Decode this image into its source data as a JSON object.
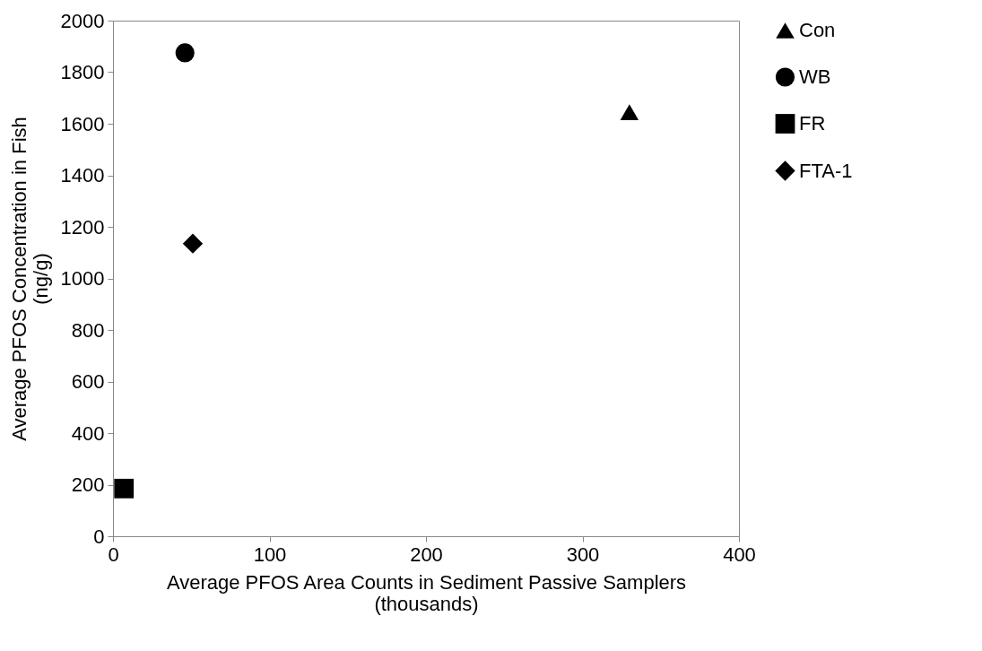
{
  "chart_data": {
    "type": "scatter",
    "xlabel": "Average PFOS Area Counts in Sediment Passive Samplers\n(thousands)",
    "ylabel": "Average PFOS Concentration in Fish\n(ng/g)",
    "series": [
      {
        "name": "Con",
        "color": "#000000",
        "marker": "triangle",
        "x": [
          330
        ],
        "values": [
          1645
        ]
      },
      {
        "name": "WB",
        "color": "#000000",
        "marker": "circle",
        "x": [
          46
        ],
        "values": [
          1875
        ]
      },
      {
        "name": "FR",
        "color": "#000000",
        "marker": "square",
        "x": [
          7
        ],
        "values": [
          185
        ]
      },
      {
        "name": "FTA-1",
        "color": "#000000",
        "marker": "diamond",
        "x": [
          51
        ],
        "values": [
          1135
        ]
      }
    ],
    "xlim": [
      0,
      400
    ],
    "xticks": [
      0,
      100,
      200,
      300,
      400
    ],
    "ylim": [
      0,
      2000
    ],
    "yticks": [
      0,
      200,
      400,
      600,
      800,
      1000,
      1200,
      1400,
      1600,
      1800,
      2000
    ],
    "legend": "right"
  }
}
